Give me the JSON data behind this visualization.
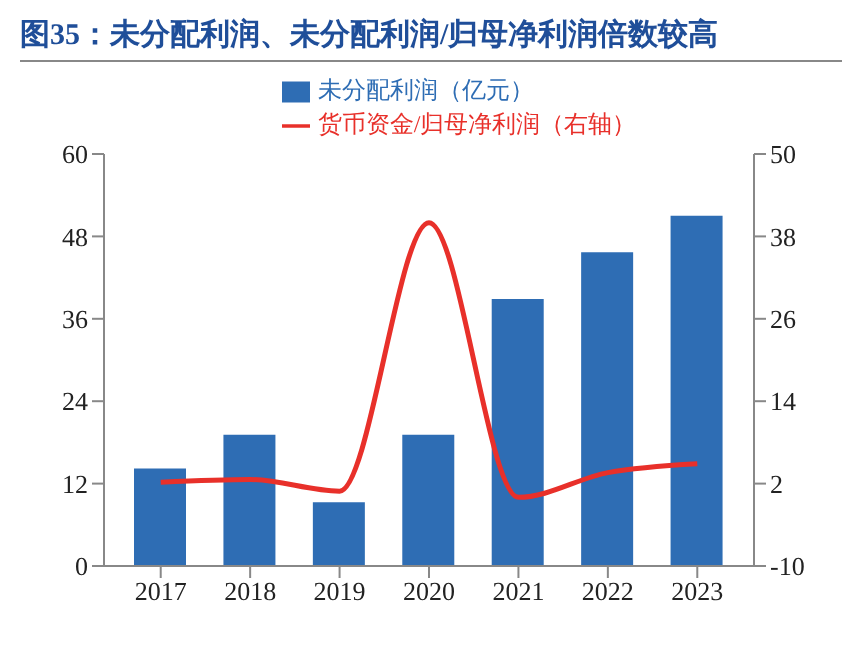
{
  "chart_data": {
    "type": "bar",
    "title": "图35：未分配利润、未分配利润/归母净利润倍数较高",
    "categories": [
      "2017",
      "2018",
      "2019",
      "2020",
      "2021",
      "2022",
      "2023"
    ],
    "series": [
      {
        "name": "未分配利润（亿元）",
        "color": "#2e6db4",
        "values": [
          14.2,
          19.1,
          9.3,
          19.1,
          38.9,
          45.7,
          51
        ]
      },
      {
        "name": "货币资金/归母净利润（右轴）",
        "type": "line",
        "axis": "y2",
        "color": "#e8302a",
        "values": [
          2.2,
          2.6,
          0.9,
          40,
          0,
          3.6,
          4.9
        ]
      }
    ],
    "ylim": [
      0,
      60
    ],
    "yticks": [
      0,
      12,
      24,
      36,
      48,
      60
    ],
    "y2lim": [
      -10,
      50
    ],
    "y2ticks": [
      -10,
      2,
      14,
      26,
      38,
      50
    ],
    "legend": "top",
    "marker": "none"
  }
}
